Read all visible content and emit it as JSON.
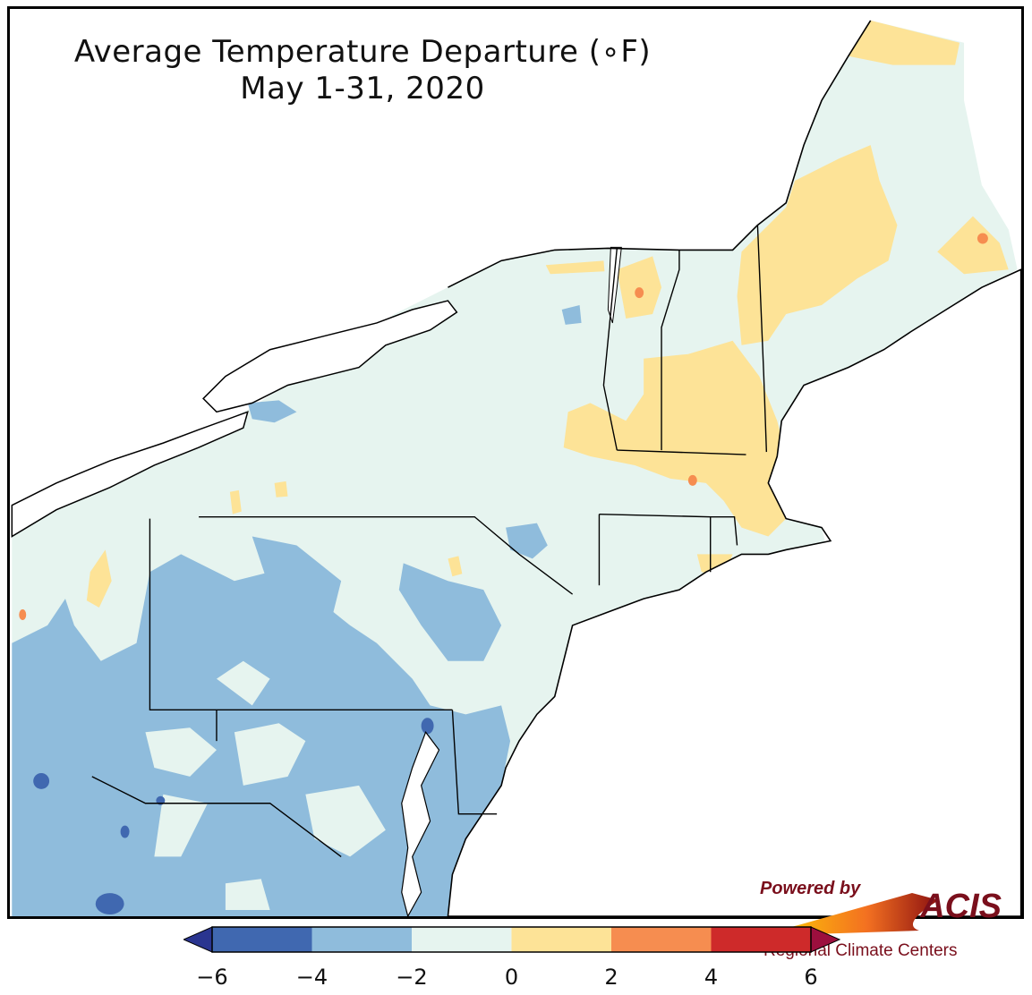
{
  "title": {
    "line1": "Average Temperature Departure (∘F)",
    "line2": "May 1-31, 2020"
  },
  "logo": {
    "powered_by": "Powered by",
    "name": "ACIS",
    "subtitle": "Regional Climate Centers",
    "color": "#7a0f1c"
  },
  "legend": {
    "bins": [
      {
        "from": -6,
        "to": -4,
        "color": "#4068b0"
      },
      {
        "from": -4,
        "to": -2,
        "color": "#8fbcdc"
      },
      {
        "from": -2,
        "to": 0,
        "color": "#e6f4ef"
      },
      {
        "from": 0,
        "to": 2,
        "color": "#fde397"
      },
      {
        "from": 2,
        "to": 4,
        "color": "#f68d50"
      },
      {
        "from": 4,
        "to": 6,
        "color": "#ce2a2a"
      }
    ],
    "below_color": "#2a3590",
    "above_color": "#9c0f3e",
    "ticks": [
      "−6",
      "−4",
      "−2",
      "0",
      "2",
      "4",
      "6"
    ]
  }
}
